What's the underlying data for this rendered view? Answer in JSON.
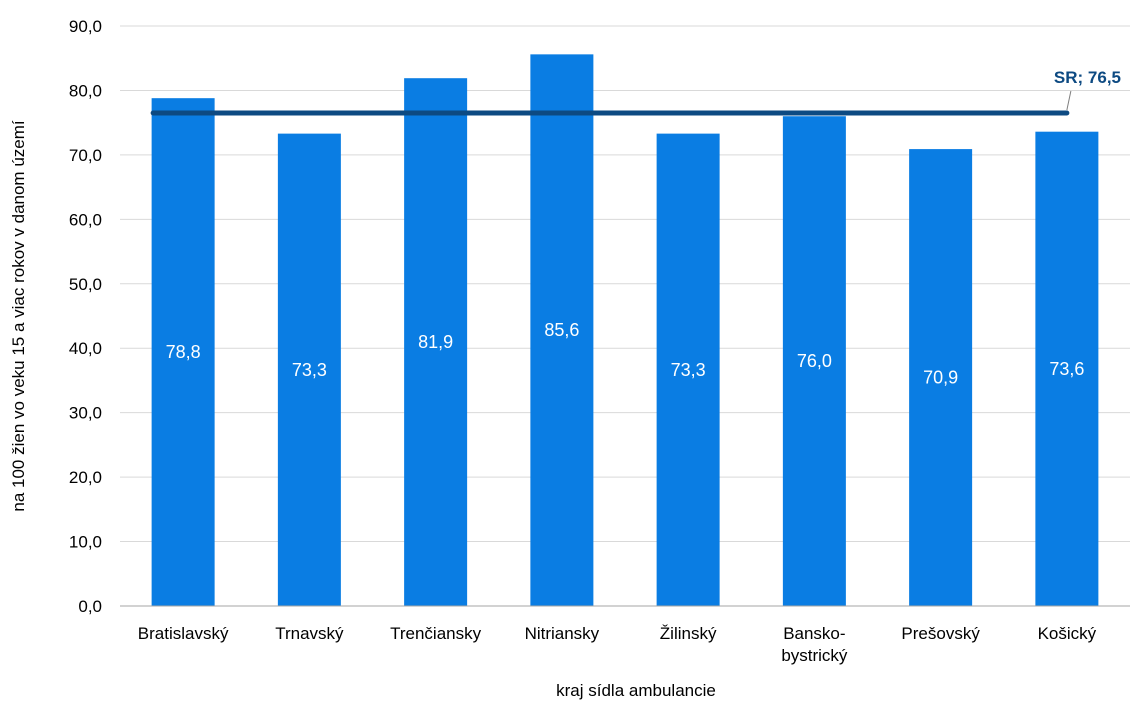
{
  "chart_data": {
    "type": "bar",
    "categories": [
      [
        "Bratislavský"
      ],
      [
        "Trnavský"
      ],
      [
        "Trenčiansky"
      ],
      [
        "Nitriansky"
      ],
      [
        "Žilinský"
      ],
      [
        "Bansko-",
        "bystrický"
      ],
      [
        "Prešovský"
      ],
      [
        "Košický"
      ]
    ],
    "values": [
      78.8,
      73.3,
      81.9,
      85.6,
      73.3,
      76.0,
      70.9,
      73.6
    ],
    "data_labels": [
      "78,8",
      "73,3",
      "81,9",
      "85,6",
      "73,3",
      "76,0",
      "70,9",
      "73,6"
    ],
    "reference_line": {
      "label": "SR; 76,5",
      "value": 76.5
    },
    "ylim": [
      0,
      90
    ],
    "yticks": [
      0,
      10,
      20,
      30,
      40,
      50,
      60,
      70,
      80,
      90
    ],
    "ytick_labels": [
      "0,0",
      "10,0",
      "20,0",
      "30,0",
      "40,0",
      "50,0",
      "60,0",
      "70,0",
      "80,0",
      "90,0"
    ],
    "xlabel": "kraj sídla ambulancie",
    "ylabel": "na 100  žien vo veku 15 a viac rokov v danom území",
    "grid": true,
    "colors": {
      "bar": "#0a7de3",
      "reference": "#0d4a82",
      "grid": "#d9d9d9",
      "axis": "#a6a6a6"
    }
  }
}
